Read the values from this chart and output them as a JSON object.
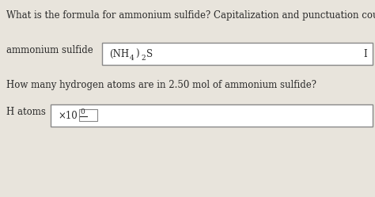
{
  "bg_color": "#e8e4dc",
  "title_text": "What is the formula for ammonium sulfide? Capitalization and punctuation count.",
  "label1": "ammonium sulfide",
  "cursor_text": "I",
  "question2": "How many hydrogen atoms are in 2.50 mol of ammonium sulfide?",
  "label2": "H atoms",
  "hatoms_prefix": "×10",
  "hatoms_sup": "0",
  "title_fontsize": 8.5,
  "body_fontsize": 8.5,
  "formula_fontsize": 8.5,
  "small_fontsize": 6.5
}
